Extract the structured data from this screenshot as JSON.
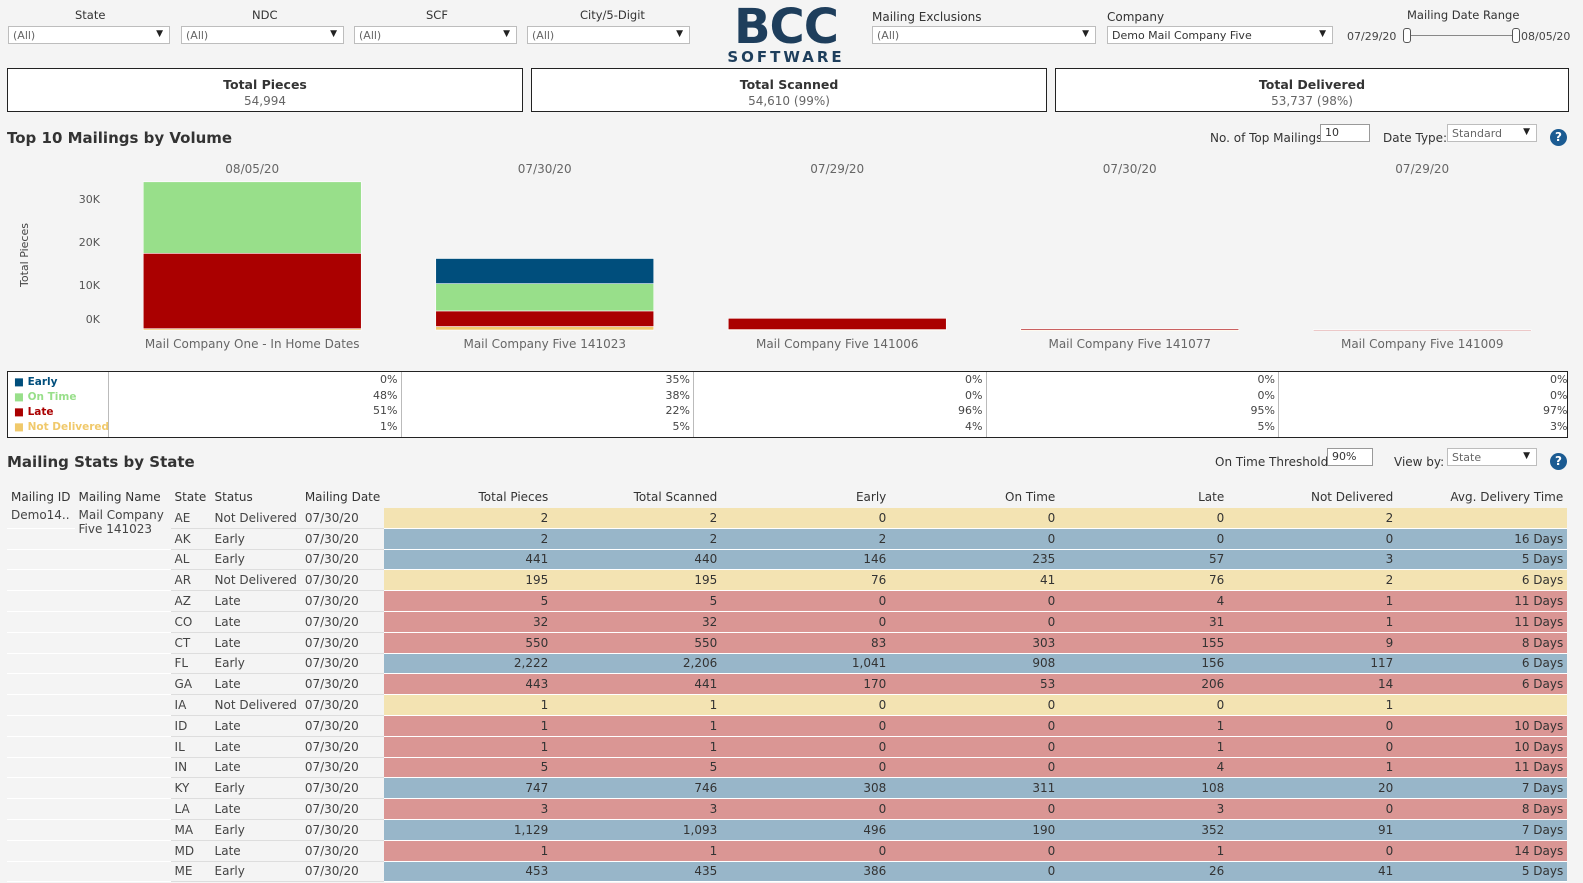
{
  "filters": [
    {
      "label": "State",
      "value": "(All)"
    },
    {
      "label": "NDC",
      "value": "(All)"
    },
    {
      "label": "SCF",
      "value": "(All)"
    },
    {
      "label": "City/5-Digit",
      "value": "(All)"
    }
  ],
  "logo": {
    "line1": "BCC",
    "line2": "SOFTWARE"
  },
  "mailing_exclusions": {
    "label": "Mailing Exclusions",
    "value": "(All)"
  },
  "company": {
    "label": "Company",
    "value": "Demo Mail Company Five"
  },
  "date_range": {
    "label": "Mailing Date Range",
    "start": "07/29/20",
    "end": "08/05/20"
  },
  "kpis": [
    {
      "title": "Total Pieces",
      "value": "54,994"
    },
    {
      "title": "Total Scanned",
      "value": "54,610 (99%)"
    },
    {
      "title": "Total Delivered",
      "value": "53,737 (98%)"
    }
  ],
  "top10": {
    "title": "Top 10 Mailings by Volume",
    "no_label": "No. of Top Mailings:",
    "no_value": "10",
    "date_type_label": "Date Type:",
    "date_type_value": "Standard",
    "help": "?"
  },
  "colors": {
    "early": "#004e7c",
    "on_time": "#98df8a",
    "late": "#aa0000",
    "not_delivered": "#f0c96b"
  },
  "chart_data": {
    "type": "bar",
    "ylabel": "Total Pieces",
    "yticks": [
      "30K",
      "20K",
      "10K",
      "0K"
    ],
    "ylim": [
      0,
      33000
    ],
    "panels": [
      {
        "date": "08/05/20",
        "name": "Mail Company One - In Home Dates",
        "early": 0,
        "on_time": 16500,
        "late": 17400,
        "not_delivered": 300
      },
      {
        "date": "07/30/20",
        "name": "Mail Company Five 141023",
        "early": 5800,
        "on_time": 6300,
        "late": 3600,
        "not_delivered": 800
      },
      {
        "date": "07/29/20",
        "name": "Mail Company Five 141006",
        "early": 0,
        "on_time": 0,
        "late": 2600,
        "not_delivered": 100
      },
      {
        "date": "07/30/20",
        "name": "Mail Company Five 141077",
        "early": 0,
        "on_time": 0,
        "late": 290,
        "not_delivered": 15
      },
      {
        "date": "07/29/20",
        "name": "Mail Company Five 141009",
        "early": 0,
        "on_time": 0,
        "late": 50,
        "not_delivered": 2
      }
    ]
  },
  "legend": {
    "labels": [
      "Early",
      "On Time",
      "Late",
      "Not Delivered"
    ],
    "pcts": [
      [
        "0%",
        "48%",
        "51%",
        "1%"
      ],
      [
        "35%",
        "38%",
        "22%",
        "5%"
      ],
      [
        "0%",
        "0%",
        "96%",
        "4%"
      ],
      [
        "0%",
        "0%",
        "95%",
        "5%"
      ],
      [
        "0%",
        "0%",
        "97%",
        "3%"
      ]
    ]
  },
  "state_stats": {
    "title": "Mailing Stats by State",
    "threshold_label": "On Time Threshold:",
    "threshold_value": "90%",
    "view_label": "View by:",
    "view_value": "State",
    "help": "?",
    "headers": [
      "Mailing ID",
      "Mailing Name",
      "State",
      "Status",
      "Mailing Date",
      "Total Pieces",
      "Total Scanned",
      "Early",
      "On Time",
      "Late",
      "Not Delivered",
      "Avg. Delivery Time"
    ],
    "mailing_id": "Demo14..",
    "mailing_name": "Mail Company Five 141023",
    "rows": [
      {
        "state": "AE",
        "status": "Not Delivered",
        "date": "07/30/20",
        "total": "2",
        "scanned": "2",
        "early": "0",
        "on_time": "0",
        "late": "0",
        "nd": "2",
        "avg": ""
      },
      {
        "state": "AK",
        "status": "Early",
        "date": "07/30/20",
        "total": "2",
        "scanned": "2",
        "early": "2",
        "on_time": "0",
        "late": "0",
        "nd": "0",
        "avg": "16 Days"
      },
      {
        "state": "AL",
        "status": "Early",
        "date": "07/30/20",
        "total": "441",
        "scanned": "440",
        "early": "146",
        "on_time": "235",
        "late": "57",
        "nd": "3",
        "avg": "5 Days"
      },
      {
        "state": "AR",
        "status": "Not Delivered",
        "date": "07/30/20",
        "total": "195",
        "scanned": "195",
        "early": "76",
        "on_time": "41",
        "late": "76",
        "nd": "2",
        "avg": "6 Days"
      },
      {
        "state": "AZ",
        "status": "Late",
        "date": "07/30/20",
        "total": "5",
        "scanned": "5",
        "early": "0",
        "on_time": "0",
        "late": "4",
        "nd": "1",
        "avg": "11 Days"
      },
      {
        "state": "CO",
        "status": "Late",
        "date": "07/30/20",
        "total": "32",
        "scanned": "32",
        "early": "0",
        "on_time": "0",
        "late": "31",
        "nd": "1",
        "avg": "11 Days"
      },
      {
        "state": "CT",
        "status": "Late",
        "date": "07/30/20",
        "total": "550",
        "scanned": "550",
        "early": "83",
        "on_time": "303",
        "late": "155",
        "nd": "9",
        "avg": "8 Days"
      },
      {
        "state": "FL",
        "status": "Early",
        "date": "07/30/20",
        "total": "2,222",
        "scanned": "2,206",
        "early": "1,041",
        "on_time": "908",
        "late": "156",
        "nd": "117",
        "avg": "6 Days"
      },
      {
        "state": "GA",
        "status": "Late",
        "date": "07/30/20",
        "total": "443",
        "scanned": "441",
        "early": "170",
        "on_time": "53",
        "late": "206",
        "nd": "14",
        "avg": "6 Days"
      },
      {
        "state": "IA",
        "status": "Not Delivered",
        "date": "07/30/20",
        "total": "1",
        "scanned": "1",
        "early": "0",
        "on_time": "0",
        "late": "0",
        "nd": "1",
        "avg": ""
      },
      {
        "state": "ID",
        "status": "Late",
        "date": "07/30/20",
        "total": "1",
        "scanned": "1",
        "early": "0",
        "on_time": "0",
        "late": "1",
        "nd": "0",
        "avg": "10 Days"
      },
      {
        "state": "IL",
        "status": "Late",
        "date": "07/30/20",
        "total": "1",
        "scanned": "1",
        "early": "0",
        "on_time": "0",
        "late": "1",
        "nd": "0",
        "avg": "10 Days"
      },
      {
        "state": "IN",
        "status": "Late",
        "date": "07/30/20",
        "total": "5",
        "scanned": "5",
        "early": "0",
        "on_time": "0",
        "late": "4",
        "nd": "1",
        "avg": "11 Days"
      },
      {
        "state": "KY",
        "status": "Early",
        "date": "07/30/20",
        "total": "747",
        "scanned": "746",
        "early": "308",
        "on_time": "311",
        "late": "108",
        "nd": "20",
        "avg": "7 Days"
      },
      {
        "state": "LA",
        "status": "Late",
        "date": "07/30/20",
        "total": "3",
        "scanned": "3",
        "early": "0",
        "on_time": "0",
        "late": "3",
        "nd": "0",
        "avg": "8 Days"
      },
      {
        "state": "MA",
        "status": "Early",
        "date": "07/30/20",
        "total": "1,129",
        "scanned": "1,093",
        "early": "496",
        "on_time": "190",
        "late": "352",
        "nd": "91",
        "avg": "7 Days"
      },
      {
        "state": "MD",
        "status": "Late",
        "date": "07/30/20",
        "total": "1",
        "scanned": "1",
        "early": "0",
        "on_time": "0",
        "late": "1",
        "nd": "0",
        "avg": "14 Days"
      },
      {
        "state": "ME",
        "status": "Early",
        "date": "07/30/20",
        "total": "453",
        "scanned": "435",
        "early": "386",
        "on_time": "0",
        "late": "26",
        "nd": "41",
        "avg": "5 Days"
      }
    ]
  }
}
